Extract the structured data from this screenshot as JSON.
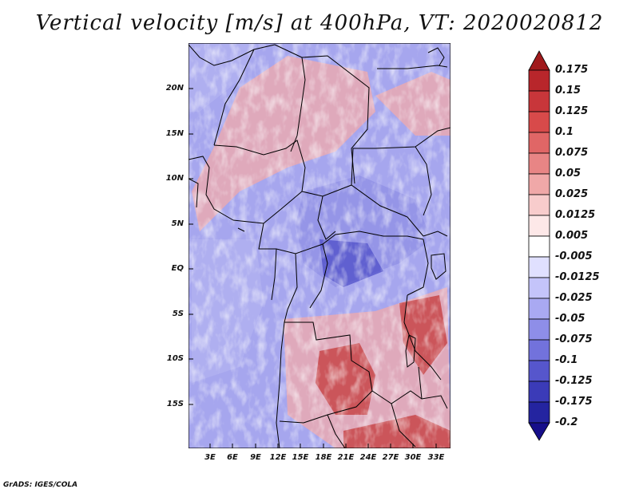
{
  "title": "Vertical velocity [m/s] at 400hPa, VT: 2020020812",
  "credit": "GrADS: IGES/COLA",
  "lat_labels": [
    "20N",
    "15N",
    "10N",
    "5N",
    "EQ",
    "5S",
    "10S",
    "15S"
  ],
  "lon_labels": [
    "3E",
    "6E",
    "9E",
    "12E",
    "15E",
    "18E",
    "21E",
    "24E",
    "27E",
    "30E",
    "33E"
  ],
  "colorbar": {
    "levels": [
      "0.175",
      "0.15",
      "0.125",
      "0.1",
      "0.075",
      "0.05",
      "0.025",
      "0.0125",
      "0.005",
      "-0.005",
      "-0.0125",
      "-0.025",
      "-0.05",
      "-0.075",
      "-0.1",
      "-0.125",
      "-0.175",
      "-0.2"
    ],
    "colors": [
      "#a01a1c",
      "#b8262b",
      "#c8363a",
      "#d84a4a",
      "#e06666",
      "#e88585",
      "#f0a8a8",
      "#f8cccc",
      "#fde8e8",
      "#ffffff",
      "#e0e0ff",
      "#c4c4fa",
      "#a9a9f2",
      "#8e8ee8",
      "#7272dc",
      "#5656cc",
      "#3b3bb8",
      "#2424a0",
      "#160e8a"
    ]
  },
  "field_colors": {
    "negative_light": "#b2b2f0",
    "negative_mid": "#8f8fe4",
    "negative_strong": "#4f4fc8",
    "positive_light": "#f2a9a9",
    "positive_strong": "#c43a3a",
    "background": "#a6a6ee"
  }
}
